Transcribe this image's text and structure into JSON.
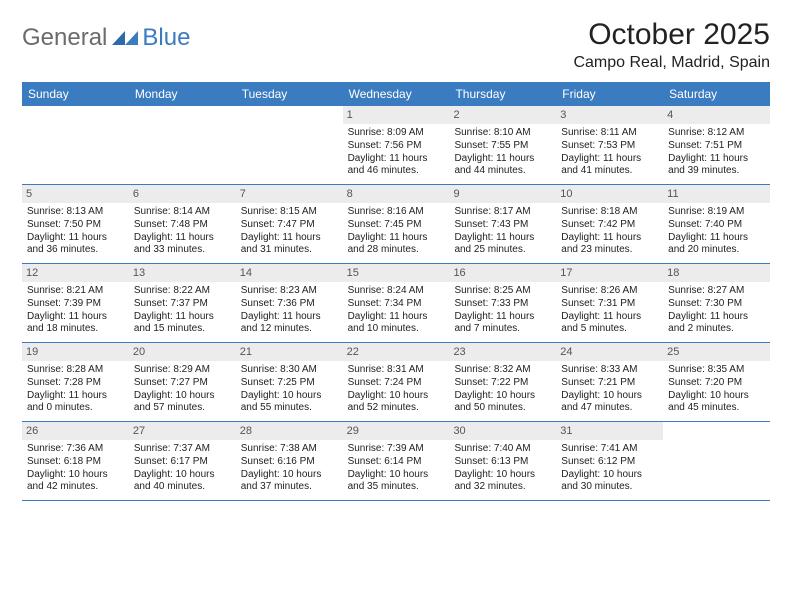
{
  "logo": {
    "text1": "General",
    "text2": "Blue"
  },
  "title": "October 2025",
  "location": "Campo Real, Madrid, Spain",
  "colors": {
    "header_bg": "#3b7bbf",
    "header_text": "#ffffff",
    "daynum_bg": "#ececec",
    "daynum_text": "#555555",
    "body_text": "#222222",
    "rule": "#3b7bbf"
  },
  "typography": {
    "month_title_pt": 30,
    "location_pt": 16,
    "dayhead_pt": 12,
    "daynum_pt": 11,
    "cell_pt": 10
  },
  "dayheads": [
    "Sunday",
    "Monday",
    "Tuesday",
    "Wednesday",
    "Thursday",
    "Friday",
    "Saturday"
  ],
  "weeks": [
    [
      {
        "n": "",
        "lines": [
          "",
          "",
          "",
          ""
        ]
      },
      {
        "n": "",
        "lines": [
          "",
          "",
          "",
          ""
        ]
      },
      {
        "n": "",
        "lines": [
          "",
          "",
          "",
          ""
        ]
      },
      {
        "n": "1",
        "lines": [
          "Sunrise: 8:09 AM",
          "Sunset: 7:56 PM",
          "Daylight: 11 hours",
          "and 46 minutes."
        ]
      },
      {
        "n": "2",
        "lines": [
          "Sunrise: 8:10 AM",
          "Sunset: 7:55 PM",
          "Daylight: 11 hours",
          "and 44 minutes."
        ]
      },
      {
        "n": "3",
        "lines": [
          "Sunrise: 8:11 AM",
          "Sunset: 7:53 PM",
          "Daylight: 11 hours",
          "and 41 minutes."
        ]
      },
      {
        "n": "4",
        "lines": [
          "Sunrise: 8:12 AM",
          "Sunset: 7:51 PM",
          "Daylight: 11 hours",
          "and 39 minutes."
        ]
      }
    ],
    [
      {
        "n": "5",
        "lines": [
          "Sunrise: 8:13 AM",
          "Sunset: 7:50 PM",
          "Daylight: 11 hours",
          "and 36 minutes."
        ]
      },
      {
        "n": "6",
        "lines": [
          "Sunrise: 8:14 AM",
          "Sunset: 7:48 PM",
          "Daylight: 11 hours",
          "and 33 minutes."
        ]
      },
      {
        "n": "7",
        "lines": [
          "Sunrise: 8:15 AM",
          "Sunset: 7:47 PM",
          "Daylight: 11 hours",
          "and 31 minutes."
        ]
      },
      {
        "n": "8",
        "lines": [
          "Sunrise: 8:16 AM",
          "Sunset: 7:45 PM",
          "Daylight: 11 hours",
          "and 28 minutes."
        ]
      },
      {
        "n": "9",
        "lines": [
          "Sunrise: 8:17 AM",
          "Sunset: 7:43 PM",
          "Daylight: 11 hours",
          "and 25 minutes."
        ]
      },
      {
        "n": "10",
        "lines": [
          "Sunrise: 8:18 AM",
          "Sunset: 7:42 PM",
          "Daylight: 11 hours",
          "and 23 minutes."
        ]
      },
      {
        "n": "11",
        "lines": [
          "Sunrise: 8:19 AM",
          "Sunset: 7:40 PM",
          "Daylight: 11 hours",
          "and 20 minutes."
        ]
      }
    ],
    [
      {
        "n": "12",
        "lines": [
          "Sunrise: 8:21 AM",
          "Sunset: 7:39 PM",
          "Daylight: 11 hours",
          "and 18 minutes."
        ]
      },
      {
        "n": "13",
        "lines": [
          "Sunrise: 8:22 AM",
          "Sunset: 7:37 PM",
          "Daylight: 11 hours",
          "and 15 minutes."
        ]
      },
      {
        "n": "14",
        "lines": [
          "Sunrise: 8:23 AM",
          "Sunset: 7:36 PM",
          "Daylight: 11 hours",
          "and 12 minutes."
        ]
      },
      {
        "n": "15",
        "lines": [
          "Sunrise: 8:24 AM",
          "Sunset: 7:34 PM",
          "Daylight: 11 hours",
          "and 10 minutes."
        ]
      },
      {
        "n": "16",
        "lines": [
          "Sunrise: 8:25 AM",
          "Sunset: 7:33 PM",
          "Daylight: 11 hours",
          "and 7 minutes."
        ]
      },
      {
        "n": "17",
        "lines": [
          "Sunrise: 8:26 AM",
          "Sunset: 7:31 PM",
          "Daylight: 11 hours",
          "and 5 minutes."
        ]
      },
      {
        "n": "18",
        "lines": [
          "Sunrise: 8:27 AM",
          "Sunset: 7:30 PM",
          "Daylight: 11 hours",
          "and 2 minutes."
        ]
      }
    ],
    [
      {
        "n": "19",
        "lines": [
          "Sunrise: 8:28 AM",
          "Sunset: 7:28 PM",
          "Daylight: 11 hours",
          "and 0 minutes."
        ]
      },
      {
        "n": "20",
        "lines": [
          "Sunrise: 8:29 AM",
          "Sunset: 7:27 PM",
          "Daylight: 10 hours",
          "and 57 minutes."
        ]
      },
      {
        "n": "21",
        "lines": [
          "Sunrise: 8:30 AM",
          "Sunset: 7:25 PM",
          "Daylight: 10 hours",
          "and 55 minutes."
        ]
      },
      {
        "n": "22",
        "lines": [
          "Sunrise: 8:31 AM",
          "Sunset: 7:24 PM",
          "Daylight: 10 hours",
          "and 52 minutes."
        ]
      },
      {
        "n": "23",
        "lines": [
          "Sunrise: 8:32 AM",
          "Sunset: 7:22 PM",
          "Daylight: 10 hours",
          "and 50 minutes."
        ]
      },
      {
        "n": "24",
        "lines": [
          "Sunrise: 8:33 AM",
          "Sunset: 7:21 PM",
          "Daylight: 10 hours",
          "and 47 minutes."
        ]
      },
      {
        "n": "25",
        "lines": [
          "Sunrise: 8:35 AM",
          "Sunset: 7:20 PM",
          "Daylight: 10 hours",
          "and 45 minutes."
        ]
      }
    ],
    [
      {
        "n": "26",
        "lines": [
          "Sunrise: 7:36 AM",
          "Sunset: 6:18 PM",
          "Daylight: 10 hours",
          "and 42 minutes."
        ]
      },
      {
        "n": "27",
        "lines": [
          "Sunrise: 7:37 AM",
          "Sunset: 6:17 PM",
          "Daylight: 10 hours",
          "and 40 minutes."
        ]
      },
      {
        "n": "28",
        "lines": [
          "Sunrise: 7:38 AM",
          "Sunset: 6:16 PM",
          "Daylight: 10 hours",
          "and 37 minutes."
        ]
      },
      {
        "n": "29",
        "lines": [
          "Sunrise: 7:39 AM",
          "Sunset: 6:14 PM",
          "Daylight: 10 hours",
          "and 35 minutes."
        ]
      },
      {
        "n": "30",
        "lines": [
          "Sunrise: 7:40 AM",
          "Sunset: 6:13 PM",
          "Daylight: 10 hours",
          "and 32 minutes."
        ]
      },
      {
        "n": "31",
        "lines": [
          "Sunrise: 7:41 AM",
          "Sunset: 6:12 PM",
          "Daylight: 10 hours",
          "and 30 minutes."
        ]
      },
      {
        "n": "",
        "lines": [
          "",
          "",
          "",
          ""
        ]
      }
    ]
  ]
}
